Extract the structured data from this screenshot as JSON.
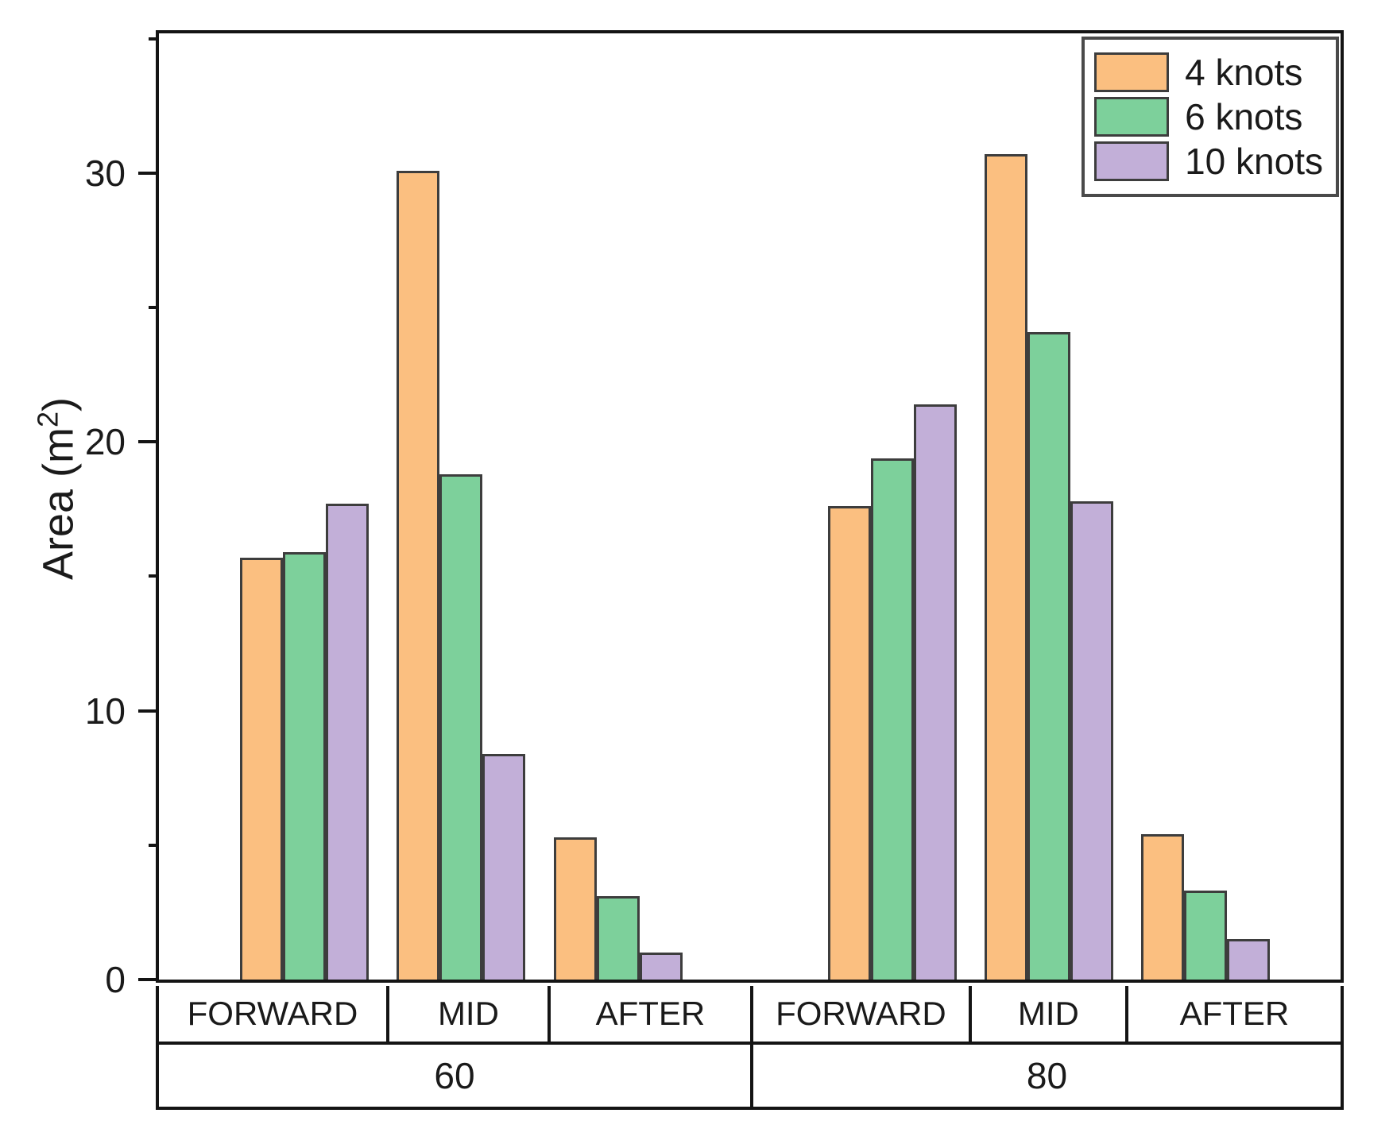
{
  "chart_data": {
    "type": "bar",
    "title": "",
    "ylabel": "Area (m²)",
    "ylabel_parts": {
      "pre": "Area (m",
      "sup": "2",
      "post": ")"
    },
    "ylim": [
      0,
      35.2
    ],
    "yticks": [
      0,
      10,
      20,
      30
    ],
    "minor_yticks": [
      5,
      15,
      25,
      35
    ],
    "grid": "off",
    "legend_position": "top-right",
    "axis_color": "#141414",
    "bar_edge_color": "#3d3d3d",
    "groups": [
      {
        "label": "60",
        "categories": [
          "FORWARD",
          "MID",
          "AFTER"
        ]
      },
      {
        "label": "80",
        "categories": [
          "FORWARD",
          "MID",
          "AFTER"
        ]
      }
    ],
    "categories": [
      "FORWARD",
      "MID",
      "AFTER",
      "FORWARD",
      "MID",
      "AFTER"
    ],
    "series": [
      {
        "name": "4 knots",
        "color": "#FBBF80",
        "values": [
          15.7,
          30.1,
          5.3,
          17.6,
          30.7,
          5.4
        ]
      },
      {
        "name": "6 knots",
        "color": "#7DD09B",
        "values": [
          15.9,
          18.8,
          3.1,
          19.4,
          24.1,
          3.3
        ]
      },
      {
        "name": "10 knots",
        "color": "#C2AFD8",
        "values": [
          17.7,
          8.4,
          1.0,
          21.4,
          17.8,
          1.5
        ]
      }
    ]
  }
}
